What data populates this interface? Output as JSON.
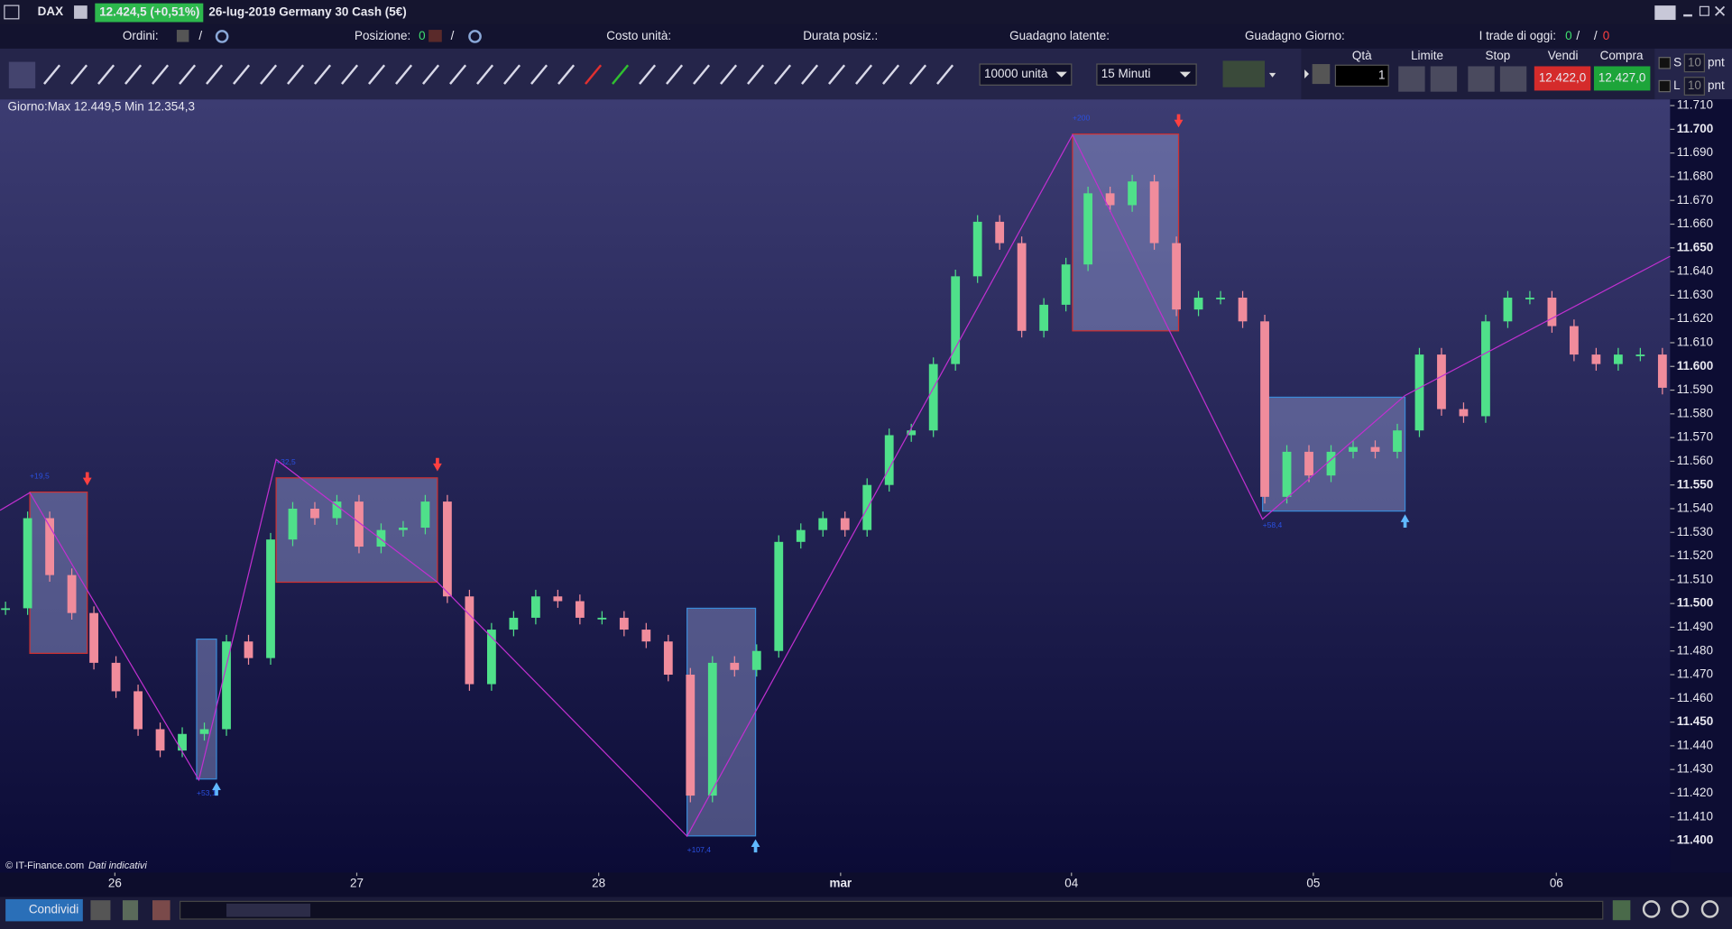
{
  "header": {
    "symbol": "DAX",
    "quote": "12.424,5 (+0,51%)",
    "instrument": "26-lug-2019 Germany 30 Cash (5€)"
  },
  "info_bar": {
    "orders_label": "Ordini:",
    "orders_sep": "/",
    "position_label": "Posizione:",
    "position_value": "0",
    "position_sep": "/",
    "unit_cost_label": "Costo unità:",
    "duration_label": "Durata posiz.:",
    "unrealized_label": "Guadagno latente:",
    "day_gain_label": "Guadagno Giorno:",
    "trades_today_label": "I trade di oggi:",
    "trades_won": "0",
    "sep1": "/",
    "sep2": "/",
    "trades_lost": "0"
  },
  "toolbar": {
    "quantity_units": "10000 unità",
    "timeframe": "15 Minuti",
    "qty_label": "Qtà",
    "qty_value": "1",
    "limit_label": "Limite",
    "stop_label": "Stop",
    "sell_label": "Vendi",
    "buy_label": "Compra",
    "sell_price": "12.422,0",
    "buy_price": "12.427,0",
    "s_label": "S",
    "s_value": "10",
    "s_unit": "pnt",
    "l_label": "L",
    "l_value": "10",
    "l_unit": "pnt"
  },
  "bottom_bar": {
    "share": "Condividi"
  },
  "chart": {
    "type": "candlestick",
    "day_range": "Giorno:Max 12.449,5 Min 12.354,3",
    "copyright": "© IT-Finance.com",
    "disclaimer": "Dati indicativi",
    "xlim": [
      -0.25,
      75.35
    ],
    "xticks": [
      {
        "value": 4.95,
        "label": "26"
      },
      {
        "value": 15.9,
        "label": "27"
      },
      {
        "value": 26.85,
        "label": "28"
      },
      {
        "value": 37.8,
        "label": "mar"
      },
      {
        "value": 48.25,
        "label": "04"
      },
      {
        "value": 59.2,
        "label": "05"
      },
      {
        "value": 70.2,
        "label": "06"
      }
    ],
    "ylim": [
      11386.5,
      11712.6
    ],
    "yticks": [
      {
        "value": 11400,
        "label": "11.400"
      },
      {
        "value": 11410,
        "label": "11.410"
      },
      {
        "value": 11420,
        "label": "11.420"
      },
      {
        "value": 11430,
        "label": "11.430"
      },
      {
        "value": 11440,
        "label": "11.440"
      },
      {
        "value": 11450,
        "label": "11.450"
      },
      {
        "value": 11460,
        "label": "11.460"
      },
      {
        "value": 11470,
        "label": "11.470"
      },
      {
        "value": 11480,
        "label": "11.480"
      },
      {
        "value": 11490,
        "label": "11.490"
      },
      {
        "value": 11500,
        "label": "11.500"
      },
      {
        "value": 11510,
        "label": "11.510"
      },
      {
        "value": 11520,
        "label": "11.520"
      },
      {
        "value": 11530,
        "label": "11.530"
      },
      {
        "value": 11540,
        "label": "11.540"
      },
      {
        "value": 11550,
        "label": "11.550"
      },
      {
        "value": 11560,
        "label": "11.560"
      },
      {
        "value": 11570,
        "label": "11.570"
      },
      {
        "value": 11580,
        "label": "11.580"
      },
      {
        "value": 11590,
        "label": "11.590"
      },
      {
        "value": 11600,
        "label": "11.600"
      },
      {
        "value": 11610,
        "label": "11.610"
      },
      {
        "value": 11620,
        "label": "11.620"
      },
      {
        "value": 11630,
        "label": "11.630"
      },
      {
        "value": 11640,
        "label": "11.640"
      },
      {
        "value": 11650,
        "label": "11.650"
      },
      {
        "value": 11660,
        "label": "11.660"
      },
      {
        "value": 11670,
        "label": "11.670"
      },
      {
        "value": 11680,
        "label": "11.680"
      },
      {
        "value": 11690,
        "label": "11.690"
      },
      {
        "value": 11700,
        "label": "11.700"
      },
      {
        "value": 11710,
        "label": "11.710"
      }
    ],
    "up_color": "#4fe08a",
    "down_color": "#f08c9c",
    "prices": [
      11498,
      11536,
      11512,
      11496,
      11475,
      11463,
      11447,
      11438,
      11445,
      11447,
      11484,
      11477,
      11527,
      11540,
      11536,
      11543,
      11524,
      11531,
      11532,
      11543,
      11503,
      11466,
      11489,
      11494,
      11503,
      11501,
      11494,
      11494,
      11489,
      11484,
      11470,
      11419,
      11475,
      11472,
      11480,
      11526,
      11531,
      11536,
      11531,
      11550,
      11571,
      11573,
      11601,
      11638,
      11661,
      11652,
      11615,
      11626,
      11643,
      11673,
      11668,
      11678,
      11652,
      11624,
      11629,
      11629,
      11619,
      11545,
      11564,
      11554,
      11564,
      11566,
      11564,
      11573,
      11605,
      11582,
      11579,
      11619,
      11629,
      11629,
      11617,
      11605,
      11601,
      11605,
      11605,
      11591
    ],
    "trades": [
      {
        "label": "+19,5",
        "start": 1.1,
        "end": 3.7,
        "high": 11547,
        "low": 11479,
        "side": "short",
        "color": "#d03030"
      },
      {
        "label": "+53,1",
        "start": 8.65,
        "end": 9.55,
        "high": 11485,
        "low": 11426,
        "side": "long",
        "color": "#3a8ad8"
      },
      {
        "label": "+32,5",
        "start": 12.25,
        "end": 19.55,
        "high": 11553,
        "low": 11509,
        "side": "short",
        "color": "#d03030"
      },
      {
        "label": "+107,4",
        "start": 30.85,
        "end": 33.95,
        "high": 11498,
        "low": 11402,
        "side": "long",
        "color": "#3a8ad8"
      },
      {
        "label": "+200",
        "start": 48.3,
        "end": 53.1,
        "high": 11698,
        "low": 11615,
        "side": "short",
        "color": "#d03030"
      },
      {
        "label": "+58,4",
        "start": 56.9,
        "end": 63.35,
        "high": 11587,
        "low": 11539,
        "side": "long",
        "color": "#3a8ad8"
      }
    ]
  }
}
